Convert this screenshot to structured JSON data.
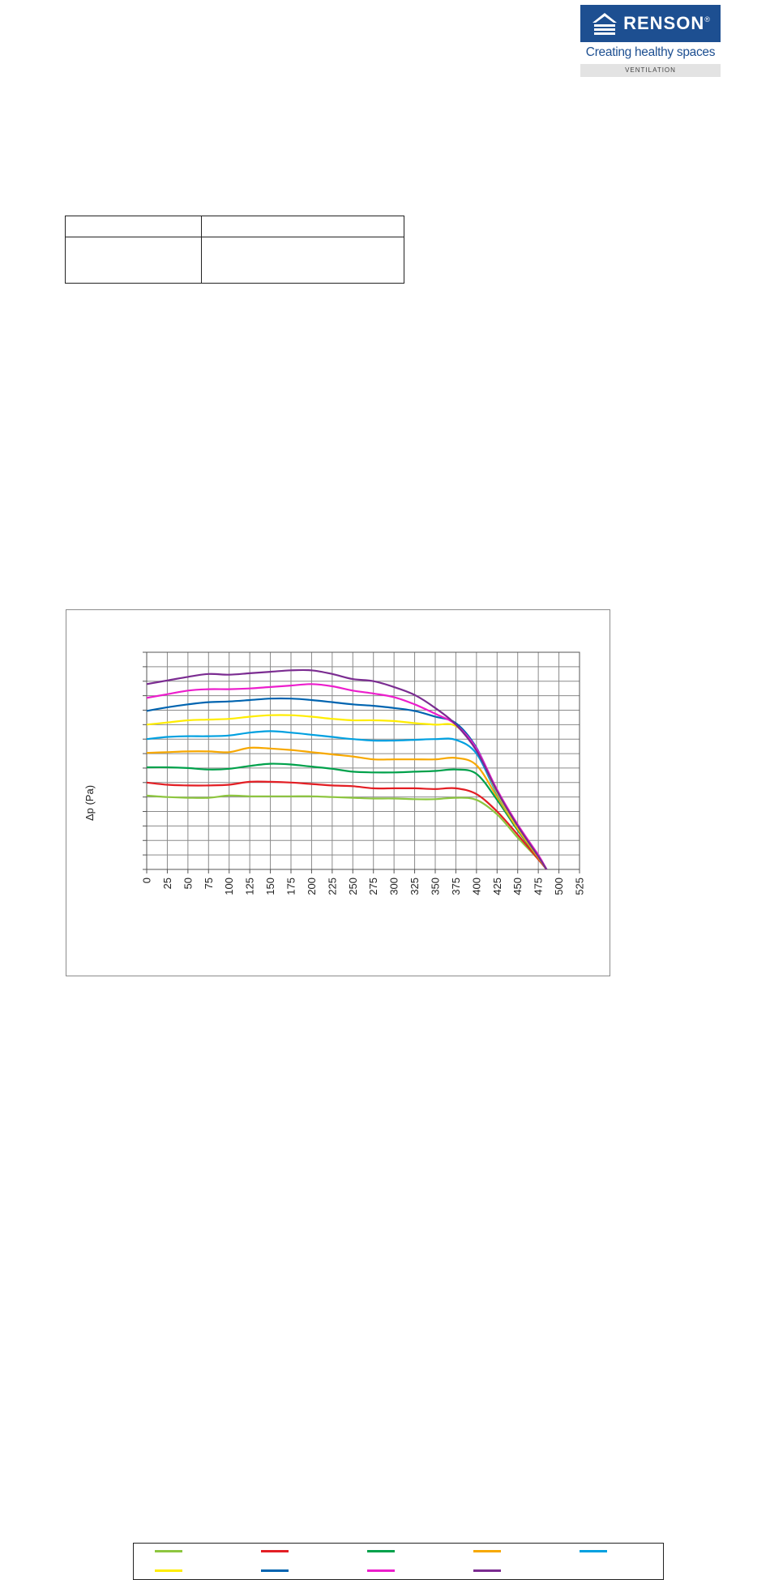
{
  "logo": {
    "name": "RENSON",
    "registered": "®",
    "tagline": "Creating healthy spaces",
    "division": "VENTILATION",
    "color": "#1d4f91"
  },
  "chart_data": {
    "type": "line",
    "title": "",
    "xlabel": "",
    "ylabel": "Δp (Pa)",
    "xlim": [
      0,
      525
    ],
    "ylim": [
      0,
      15
    ],
    "xticks": [
      0,
      25,
      50,
      75,
      100,
      125,
      150,
      175,
      200,
      225,
      250,
      275,
      300,
      325,
      350,
      375,
      400,
      425,
      450,
      475,
      500,
      525
    ],
    "yticks": [
      0,
      1,
      2,
      3,
      4,
      5,
      6,
      7,
      8,
      9,
      10,
      11,
      12,
      13,
      14,
      15
    ],
    "ytick_labels_visible": false,
    "grid": true,
    "legend_position": "bottom",
    "series": [
      {
        "color": "#8dc63f",
        "x": [
          0,
          25,
          50,
          75,
          100,
          125,
          150,
          175,
          200,
          225,
          250,
          275,
          300,
          325,
          350,
          375,
          400,
          425,
          450,
          475,
          485
        ],
        "y": [
          5.1,
          5.0,
          4.95,
          4.95,
          5.1,
          5.05,
          5.05,
          5.05,
          5.05,
          5.0,
          4.95,
          4.9,
          4.9,
          4.85,
          4.85,
          4.95,
          4.8,
          3.8,
          2.2,
          0.7,
          0
        ]
      },
      {
        "color": "#e31e24",
        "x": [
          0,
          25,
          50,
          75,
          100,
          125,
          150,
          175,
          200,
          225,
          250,
          275,
          300,
          325,
          350,
          375,
          400,
          425,
          450,
          475,
          485
        ],
        "y": [
          6.0,
          5.85,
          5.8,
          5.8,
          5.85,
          6.05,
          6.05,
          6.0,
          5.9,
          5.8,
          5.75,
          5.6,
          5.6,
          5.6,
          5.55,
          5.6,
          5.2,
          4.0,
          2.4,
          0.7,
          0
        ]
      },
      {
        "color": "#00a14b",
        "x": [
          0,
          25,
          50,
          75,
          100,
          125,
          150,
          175,
          200,
          225,
          250,
          275,
          300,
          325,
          350,
          375,
          400,
          425,
          450,
          475,
          485
        ],
        "y": [
          7.05,
          7.05,
          7.0,
          6.9,
          6.95,
          7.15,
          7.3,
          7.25,
          7.1,
          6.95,
          6.75,
          6.7,
          6.7,
          6.75,
          6.8,
          6.9,
          6.6,
          4.8,
          2.7,
          0.8,
          0
        ]
      },
      {
        "color": "#f7a800",
        "x": [
          0,
          25,
          50,
          75,
          100,
          125,
          150,
          175,
          200,
          225,
          250,
          275,
          300,
          325,
          350,
          375,
          400,
          425,
          450,
          475,
          485
        ],
        "y": [
          8.05,
          8.1,
          8.15,
          8.15,
          8.1,
          8.4,
          8.35,
          8.25,
          8.1,
          7.95,
          7.8,
          7.6,
          7.6,
          7.6,
          7.6,
          7.7,
          7.2,
          5.0,
          2.8,
          0.8,
          0
        ]
      },
      {
        "color": "#00a0e0",
        "x": [
          0,
          25,
          50,
          75,
          100,
          125,
          150,
          175,
          200,
          225,
          250,
          275,
          300,
          325,
          350,
          375,
          400,
          425,
          450,
          475,
          485
        ],
        "y": [
          9.0,
          9.15,
          9.2,
          9.2,
          9.25,
          9.45,
          9.55,
          9.45,
          9.3,
          9.15,
          9.0,
          8.9,
          8.9,
          8.95,
          9.0,
          8.95,
          8.0,
          5.2,
          2.9,
          0.9,
          0
        ]
      },
      {
        "color": "#ffed00",
        "x": [
          0,
          25,
          50,
          75,
          100,
          125,
          150,
          175,
          200,
          225,
          250,
          275,
          300,
          325,
          350,
          375,
          400,
          425,
          450,
          475,
          485
        ],
        "y": [
          10.0,
          10.15,
          10.3,
          10.35,
          10.4,
          10.55,
          10.65,
          10.65,
          10.55,
          10.4,
          10.3,
          10.3,
          10.25,
          10.1,
          10.0,
          9.9,
          8.3,
          5.3,
          2.9,
          0.9,
          0
        ]
      },
      {
        "color": "#0064b0",
        "x": [
          0,
          25,
          50,
          75,
          100,
          125,
          150,
          175,
          200,
          225,
          250,
          275,
          300,
          325,
          350,
          375,
          400,
          425,
          450,
          475,
          485
        ],
        "y": [
          10.95,
          11.2,
          11.4,
          11.55,
          11.6,
          11.7,
          11.8,
          11.8,
          11.7,
          11.55,
          11.4,
          11.3,
          11.15,
          10.95,
          10.55,
          10.1,
          8.4,
          5.4,
          3.0,
          0.9,
          0
        ]
      },
      {
        "color": "#ec1ecc",
        "x": [
          0,
          25,
          50,
          75,
          100,
          125,
          150,
          175,
          200,
          225,
          250,
          275,
          300,
          325,
          350,
          375,
          400,
          425,
          450,
          475,
          485
        ],
        "y": [
          11.85,
          12.1,
          12.35,
          12.45,
          12.45,
          12.5,
          12.6,
          12.7,
          12.8,
          12.65,
          12.35,
          12.15,
          11.9,
          11.4,
          10.75,
          10.0,
          8.35,
          5.5,
          3.1,
          1.0,
          0
        ]
      },
      {
        "color": "#7b2c91",
        "x": [
          0,
          25,
          50,
          75,
          100,
          125,
          150,
          175,
          200,
          225,
          250,
          275,
          300,
          325,
          350,
          375,
          400,
          425,
          450,
          475,
          485
        ],
        "y": [
          12.8,
          13.05,
          13.3,
          13.5,
          13.45,
          13.55,
          13.65,
          13.75,
          13.75,
          13.5,
          13.15,
          13.0,
          12.6,
          12.05,
          11.15,
          10.0,
          8.2,
          5.4,
          3.0,
          0.9,
          0
        ]
      }
    ]
  }
}
